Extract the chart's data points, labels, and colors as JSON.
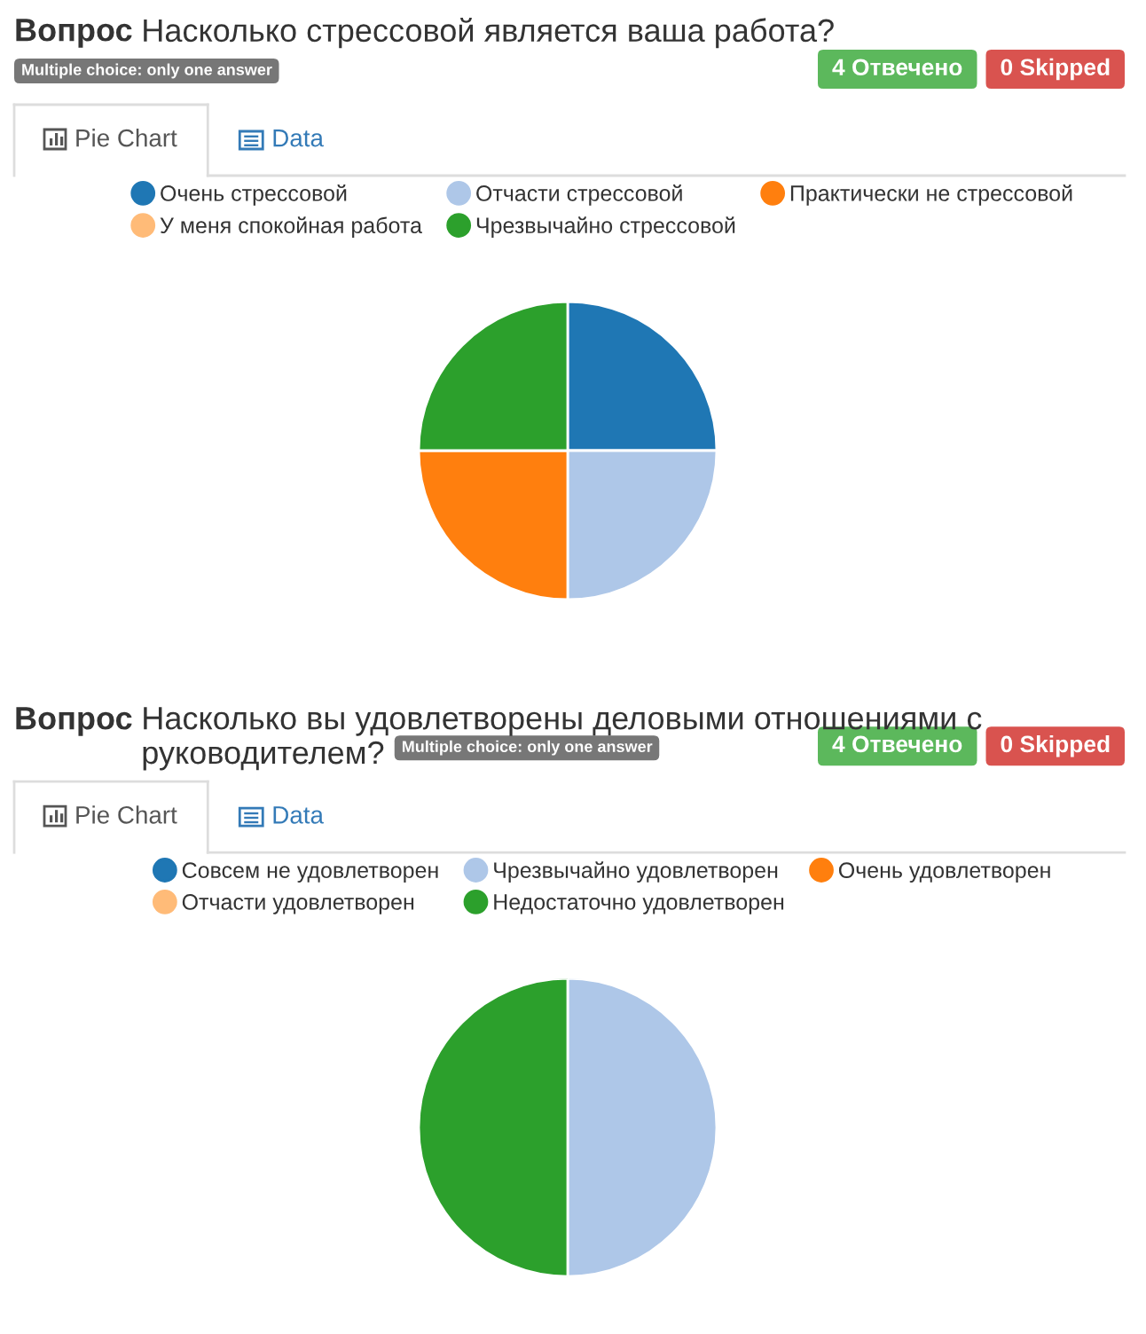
{
  "chart_data": [
    {
      "type": "pie",
      "title": "Вопрос Насколько стрессовой является ваша работа?",
      "subtitle": "Multiple choice: only one answer",
      "categories": [
        "Очень стрессовой",
        "Отчасти стрессовой",
        "Практически не стрессовой",
        "У меня спокойная работа",
        "Чрезвычайно стрессовой"
      ],
      "values": [
        25,
        25,
        25,
        0,
        25
      ],
      "colors": [
        "#1f77b4",
        "#aec7e8",
        "#ff7f0e",
        "#ffbb78",
        "#2ca02c"
      ],
      "legend": "top",
      "annotations": [
        "4 Отвечено",
        "0 Skipped",
        "Pie Chart",
        "Data"
      ]
    },
    {
      "type": "pie",
      "title": "Вопрос Насколько вы удовлетворены деловыми отношениями с руководителем?",
      "subtitle": "Multiple choice: only one answer",
      "categories": [
        "Совсем не удовлетворен",
        "Чрезвычайно удовлетворен",
        "Очень удовлетворен",
        "Отчасти удовлетворен",
        "Недостаточно удовлетворен"
      ],
      "values": [
        0,
        50,
        0,
        0,
        50
      ],
      "colors": [
        "#1f77b4",
        "#aec7e8",
        "#ff7f0e",
        "#ffbb78",
        "#2ca02c"
      ],
      "legend": "top",
      "annotations": [
        "4 Отвечено",
        "0 Skipped",
        "Pie Chart",
        "Data"
      ]
    }
  ]
}
